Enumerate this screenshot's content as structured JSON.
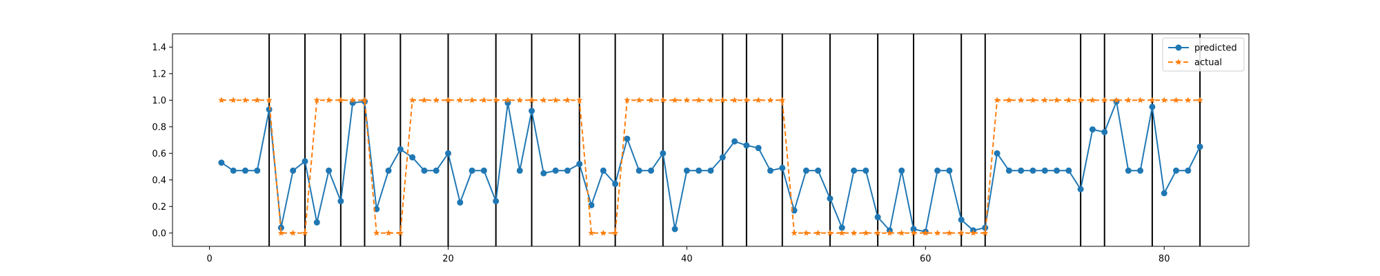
{
  "chart_data": {
    "type": "line",
    "xlim": [
      -3.1,
      87.1
    ],
    "ylim": [
      -0.1,
      1.5
    ],
    "x_ticks": [
      0,
      20,
      40,
      60,
      80
    ],
    "y_ticks": [
      0.0,
      0.2,
      0.4,
      0.6,
      0.8,
      1.0,
      1.2,
      1.4
    ],
    "grid": false,
    "legend_position": "top-right",
    "x": [
      1,
      2,
      3,
      4,
      5,
      6,
      7,
      8,
      9,
      10,
      11,
      12,
      13,
      14,
      15,
      16,
      17,
      18,
      19,
      20,
      21,
      22,
      23,
      24,
      25,
      26,
      27,
      28,
      29,
      30,
      31,
      32,
      33,
      34,
      35,
      36,
      37,
      38,
      39,
      40,
      41,
      42,
      43,
      44,
      45,
      46,
      47,
      48,
      49,
      50,
      51,
      52,
      53,
      54,
      55,
      56,
      57,
      58,
      59,
      60,
      61,
      62,
      63,
      64,
      65,
      66,
      67,
      68,
      69,
      70,
      71,
      72,
      73,
      74,
      75,
      76,
      77,
      78,
      79,
      80,
      81,
      82,
      83
    ],
    "series": [
      {
        "name": "predicted",
        "color": "#1f77b4",
        "style": "solid",
        "marker": "circle",
        "values": [
          0.53,
          0.47,
          0.47,
          0.47,
          0.93,
          0.04,
          0.47,
          0.54,
          0.08,
          0.47,
          0.24,
          0.98,
          0.99,
          0.18,
          0.47,
          0.63,
          0.57,
          0.47,
          0.47,
          0.6,
          0.23,
          0.47,
          0.47,
          0.24,
          0.98,
          0.47,
          0.92,
          0.45,
          0.47,
          0.47,
          0.52,
          0.21,
          0.47,
          0.37,
          0.71,
          0.47,
          0.47,
          0.6,
          0.03,
          0.47,
          0.47,
          0.47,
          0.57,
          0.69,
          0.66,
          0.64,
          0.47,
          0.49,
          0.17,
          0.47,
          0.47,
          0.26,
          0.04,
          0.47,
          0.47,
          0.12,
          0.02,
          0.47,
          0.03,
          0.01,
          0.47,
          0.47,
          0.1,
          0.02,
          0.04,
          0.6,
          0.47,
          0.47,
          0.47,
          0.47,
          0.47,
          0.47,
          0.33,
          0.78,
          0.76,
          0.99,
          0.47,
          0.47,
          0.95,
          0.3,
          0.47,
          0.47,
          0.65
        ]
      },
      {
        "name": "actual",
        "color": "#ff7f0e",
        "style": "dashed",
        "marker": "star",
        "values": [
          1,
          1,
          1,
          1,
          1,
          0,
          0,
          0,
          1,
          1,
          1,
          1,
          1,
          0,
          0,
          0,
          1,
          1,
          1,
          1,
          1,
          1,
          1,
          1,
          1,
          1,
          1,
          1,
          1,
          1,
          1,
          0,
          0,
          0,
          1,
          1,
          1,
          1,
          1,
          1,
          1,
          1,
          1,
          1,
          1,
          1,
          1,
          1,
          0,
          0,
          0,
          0,
          0,
          0,
          0,
          0,
          0,
          0,
          0,
          0,
          0,
          0,
          0,
          0,
          0,
          1,
          1,
          1,
          1,
          1,
          1,
          1,
          1,
          1,
          1,
          1,
          1,
          1,
          1,
          1,
          1,
          1,
          1
        ]
      }
    ],
    "vlines": [
      5,
      8,
      11,
      13,
      16,
      20,
      24,
      27,
      31,
      34,
      38,
      43,
      45,
      48,
      52,
      56,
      59,
      63,
      65,
      73,
      75,
      79,
      83
    ],
    "vline_color": "#000000"
  }
}
